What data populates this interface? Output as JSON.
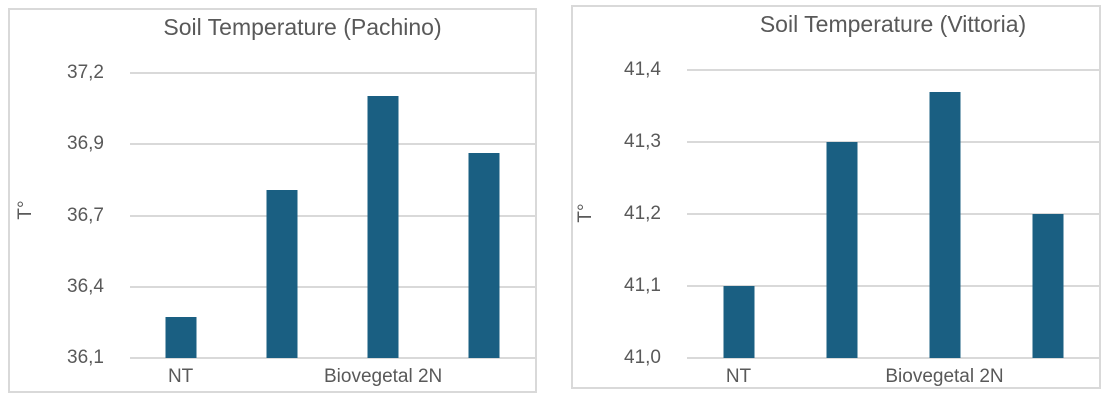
{
  "chart_data": [
    {
      "type": "bar",
      "title": "Soil Temperature (Pachino)",
      "ylabel": "T°",
      "xlabel": "",
      "categories": [
        "NT",
        "",
        "Biovegetal 2N",
        ""
      ],
      "values": [
        36.26,
        36.75,
        37.11,
        36.89
      ],
      "ylim": [
        36.1,
        37.2
      ],
      "y_ticks_top_to_bottom": [
        "37,2",
        "36,9",
        "36,7",
        "36,4",
        "36,1"
      ],
      "grid": "horizontal",
      "legend_position": "none",
      "bar_color": "#1a5f82",
      "gridline_color": "#d9d9d9",
      "text_color": "#595959"
    },
    {
      "type": "bar",
      "title": "Soil Temperature (Vittoria)",
      "ylabel": "T°",
      "xlabel": "",
      "categories": [
        "NT",
        "",
        "Biovegetal 2N",
        ""
      ],
      "values": [
        41.1,
        41.3,
        41.37,
        41.2
      ],
      "ylim": [
        41.0,
        41.4
      ],
      "y_ticks_top_to_bottom": [
        "41,4",
        "41,3",
        "41,2",
        "41,1",
        "41,0"
      ],
      "grid": "horizontal",
      "legend_position": "none",
      "bar_color": "#1a5f82",
      "gridline_color": "#d9d9d9",
      "text_color": "#595959"
    }
  ]
}
